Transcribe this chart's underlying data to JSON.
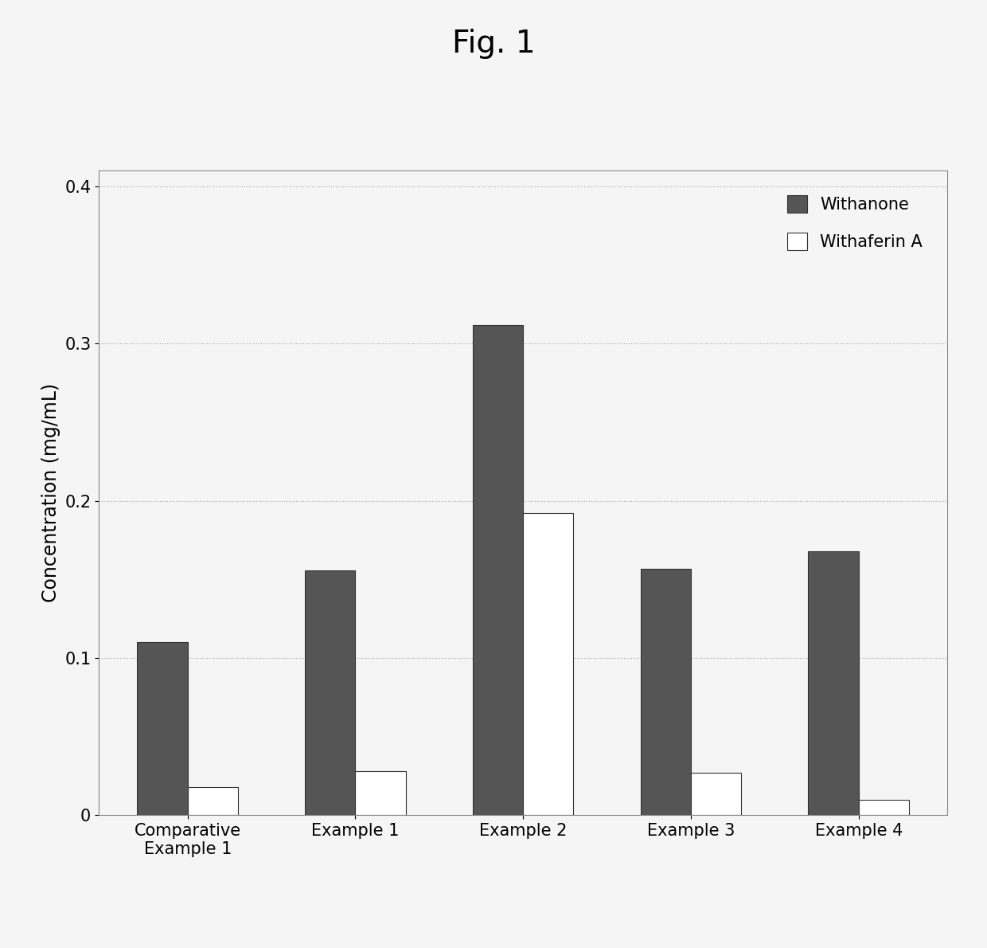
{
  "title": "Fig. 1",
  "ylabel": "Concentration (mg/mL)",
  "categories": [
    "Comparative\nExample 1",
    "Example 1",
    "Example 2",
    "Example 3",
    "Example 4"
  ],
  "withanone_values": [
    0.11,
    0.156,
    0.312,
    0.157,
    0.168
  ],
  "withaferin_values": [
    0.018,
    0.028,
    0.192,
    0.027,
    0.01
  ],
  "withanone_color": "#555555",
  "withaferin_color": "#ffffff",
  "bar_edge_color": "#333333",
  "ylim": [
    0,
    0.41
  ],
  "yticks": [
    0.0,
    0.1,
    0.2,
    0.3,
    0.4
  ],
  "title_fontsize": 28,
  "axis_label_fontsize": 17,
  "tick_fontsize": 15,
  "legend_fontsize": 15,
  "bar_width": 0.3,
  "background_color": "#f5f5f5",
  "plot_bg_color": "#f5f5f5",
  "grid_color": "#aaaaaa",
  "spine_color": "#888888"
}
